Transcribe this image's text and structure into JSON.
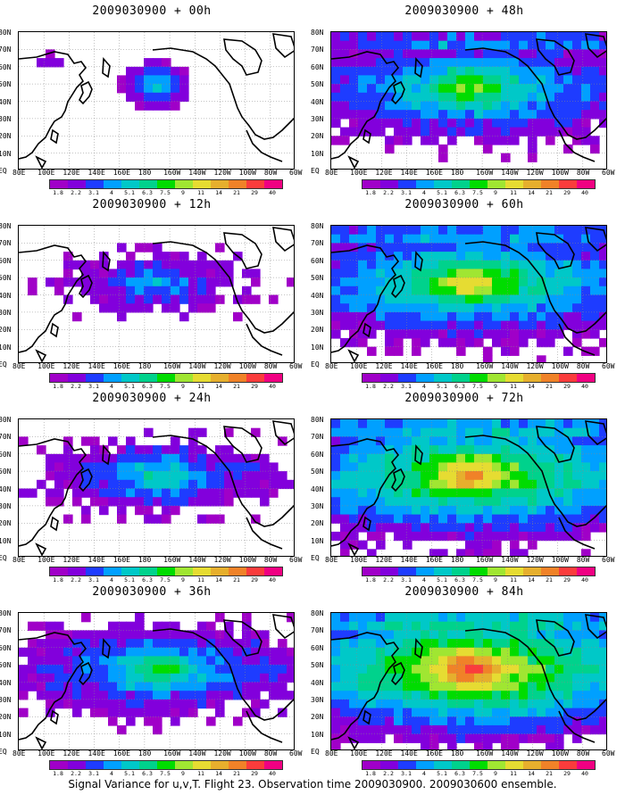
{
  "panels": [
    {
      "title": "2009030900 + 00h",
      "level": 0
    },
    {
      "title": "2009030900 + 12h",
      "level": 1
    },
    {
      "title": "2009030900 + 24h",
      "level": 2
    },
    {
      "title": "2009030900 + 36h",
      "level": 3
    },
    {
      "title": "2009030900 + 48h",
      "level": 4
    },
    {
      "title": "2009030900 + 60h",
      "level": 5
    },
    {
      "title": "2009030900 + 72h",
      "level": 6
    },
    {
      "title": "2009030900 + 84h",
      "level": 7
    }
  ],
  "lat_labels": [
    "80N",
    "70N",
    "60N",
    "50N",
    "40N",
    "30N",
    "20N",
    "10N",
    "EQ"
  ],
  "lon_labels": [
    "80E",
    "100E",
    "120E",
    "140E",
    "160E",
    "180",
    "160W",
    "140W",
    "120W",
    "100W",
    "80W",
    "60W"
  ],
  "colorbar": {
    "labels": [
      "1.8",
      "2.2",
      "3.1",
      "4",
      "5.1",
      "6.3",
      "7.5",
      "9",
      "11",
      "14",
      "21",
      "29",
      "40"
    ],
    "colors": [
      "#a000c8",
      "#8200dc",
      "#1e3cff",
      "#00a0ff",
      "#00c8c8",
      "#00d28c",
      "#00dc00",
      "#a0e632",
      "#e6dc32",
      "#e6af2d",
      "#f08228",
      "#fa3c3c",
      "#f00082"
    ]
  },
  "footer": "Signal Variance for u,v,T. Flight 23. Observation time 2009030900. 2009030600 ensemble."
}
